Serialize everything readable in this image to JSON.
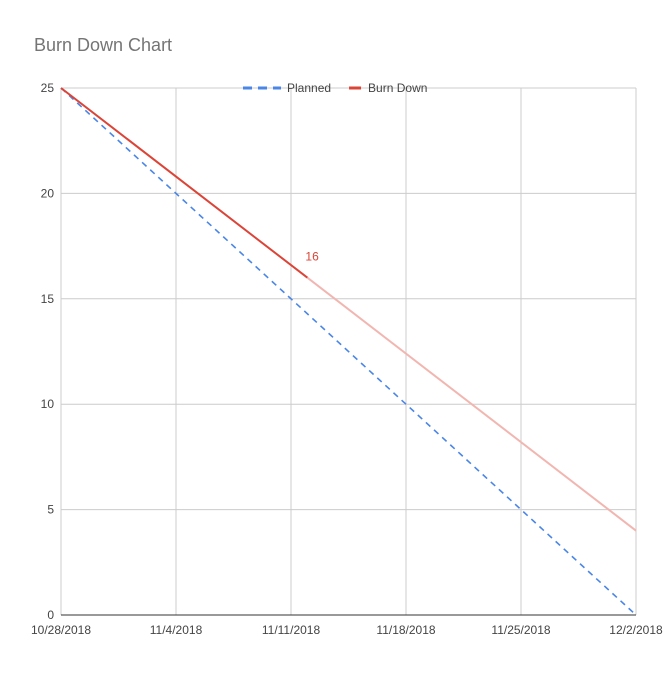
{
  "chart_data": {
    "type": "line",
    "title": "Burn Down Chart",
    "x_ticks": [
      "10/28/2018",
      "11/4/2018",
      "11/11/2018",
      "11/18/2018",
      "11/25/2018",
      "12/2/2018"
    ],
    "y_ticks": [
      "0",
      "5",
      "10",
      "15",
      "20",
      "25"
    ],
    "xlim": [
      "10/28/2018",
      "12/2/2018"
    ],
    "ylim": [
      0,
      25
    ],
    "grid": true,
    "legend_position": "top",
    "series": [
      {
        "name": "Planned",
        "style": "dashed",
        "color": "#4a86e8",
        "points": [
          {
            "x": "10/28/2018",
            "y": 25
          },
          {
            "x": "12/2/2018",
            "y": 0
          }
        ]
      },
      {
        "name": "Burn Down",
        "style": "solid",
        "color": "#db4437",
        "points": [
          {
            "x": "10/28/2018",
            "y": 25
          },
          {
            "x": "11/12/2018",
            "y": 16
          }
        ]
      },
      {
        "style": "solid",
        "color": "#f2b6b0",
        "points": [
          {
            "x": "11/12/2018",
            "y": 16
          },
          {
            "x": "12/2/2018",
            "y": 4
          }
        ]
      }
    ],
    "annotations": [
      {
        "series": "Burn Down",
        "x": "11/12/2018",
        "y": 16,
        "text": "16",
        "color": "#db4437"
      }
    ]
  }
}
